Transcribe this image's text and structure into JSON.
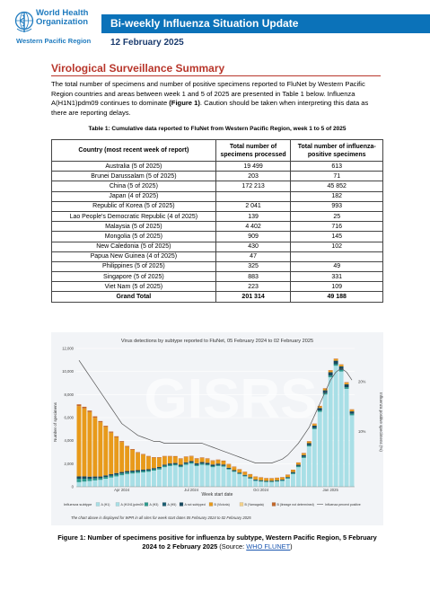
{
  "header": {
    "org_name_line1": "World Health",
    "org_name_line2": "Organization",
    "region": "Western Pacific Region",
    "title": "Bi-weekly Influenza Situation Update",
    "date": "12 February 2025",
    "brand_color": "#0b72b9"
  },
  "section": {
    "title": "Virological Surveillance Summary",
    "intro_part1": "The total number of specimens and number of positive specimens reported to FluNet by Western Pacific Region countries and areas between week 1 and 5 of 2025 are presented in Table 1 below. Influenza A(H1N1)pdm09 continues to dominate ",
    "intro_bold": "(Figure 1)",
    "intro_part2": ". Caution should be taken when interpreting this data as there are reporting delays."
  },
  "table": {
    "caption": "Table 1: Cumulative data reported to FluNet from Western Pacific Region, week 1 to 5 of 2025",
    "headers": [
      "Country (most recent week of report)",
      "Total number of specimens processed",
      "Total number of influenza-positive specimens"
    ],
    "rows": [
      [
        "Australia (5 of 2025)",
        "19 499",
        "613"
      ],
      [
        "Brunei Darussalam (5 of 2025)",
        "203",
        "71"
      ],
      [
        "China (5 of 2025)",
        "172 213",
        "45 852"
      ],
      [
        "Japan (4 of 2025)",
        "",
        "182"
      ],
      [
        "Republic of Korea (5 of 2025)",
        "2 041",
        "993"
      ],
      [
        "Lao People's Democratic Republic (4 of 2025)",
        "139",
        "25"
      ],
      [
        "Malaysia (5 of 2025)",
        "4 402",
        "716"
      ],
      [
        "Mongolia (5 of 2025)",
        "909",
        "145"
      ],
      [
        "New Caledonia (5 of 2025)",
        "430",
        "102"
      ],
      [
        "Papua New Guinea (4 of 2025)",
        "47",
        ""
      ],
      [
        "Philippines (5 of 2025)",
        "325",
        "49"
      ],
      [
        "Singapore (5 of 2025)",
        "883",
        "331"
      ],
      [
        "Viet Nam (5 of 2025)",
        "223",
        "109"
      ]
    ],
    "total": [
      "Grand Total",
      "201 314",
      "49 188"
    ]
  },
  "chart_data": {
    "type": "bar",
    "title": "Virus detections by subtype reported to FluNet, 05 February 2024 to 02 February 2025",
    "xlabel": "Week start date",
    "ylabel": "Number of specimens",
    "ylabel_right": "Influenza positive specimens (%)",
    "ylim": [
      0,
      12000
    ],
    "yticks": [
      "0",
      "2,000",
      "4,000",
      "6,000",
      "8,000",
      "10,000",
      "12,000"
    ],
    "right_ticks": [
      "10%",
      "20%"
    ],
    "xticks": [
      "Apr 2024",
      "Jul 2024",
      "Oct 2024",
      "Jan 2025"
    ],
    "watermark": "GISRS",
    "legend_title": "Influenza subtype",
    "series": [
      {
        "name": "A (H1)",
        "color": "#a8dfe6",
        "values": [
          0,
          0,
          0,
          0,
          0,
          0,
          0,
          0,
          0,
          0,
          0,
          0,
          0,
          0,
          0,
          0,
          0,
          0,
          0,
          0,
          0,
          0,
          0,
          0,
          0,
          0,
          0,
          0,
          0,
          0,
          0,
          0,
          0,
          0,
          0,
          0,
          0,
          0,
          0,
          0,
          0,
          0,
          0,
          0,
          0,
          0,
          0,
          0,
          0,
          0,
          0,
          0
        ]
      },
      {
        "name": "A (H1N1)pdm09",
        "color": "#a8dfe6",
        "values": [
          400,
          450,
          500,
          550,
          600,
          700,
          800,
          900,
          1000,
          1100,
          1150,
          1200,
          1250,
          1300,
          1400,
          1500,
          1700,
          1800,
          1850,
          1700,
          1900,
          2000,
          1800,
          1900,
          1850,
          1700,
          1800,
          1750,
          1500,
          1300,
          1100,
          900,
          700,
          500,
          450,
          400,
          400,
          450,
          500,
          700,
          1100,
          1700,
          2500,
          3500,
          5000,
          6500,
          8000,
          9500,
          10500,
          10000,
          8500,
          6200
        ]
      },
      {
        "name": "A (H3)",
        "color": "#2d9a8e",
        "values": [
          300,
          250,
          200,
          180,
          150,
          150,
          150,
          150,
          150,
          140,
          130,
          120,
          120,
          110,
          110,
          110,
          110,
          110,
          100,
          100,
          100,
          100,
          100,
          100,
          90,
          90,
          80,
          70,
          60,
          60,
          60,
          60,
          60,
          60,
          60,
          60,
          60,
          60,
          60,
          70,
          80,
          100,
          100,
          100,
          100,
          120,
          120,
          140,
          140,
          140,
          140,
          140
        ]
      },
      {
        "name": "A (H5)",
        "color": "#1b5e73",
        "values": [
          0,
          0,
          0,
          0,
          0,
          0,
          0,
          0,
          0,
          0,
          0,
          0,
          0,
          0,
          0,
          0,
          0,
          0,
          0,
          0,
          0,
          0,
          0,
          0,
          0,
          0,
          0,
          0,
          0,
          0,
          0,
          0,
          0,
          0,
          0,
          0,
          0,
          0,
          0,
          0,
          0,
          0,
          0,
          0,
          0,
          0,
          0,
          0,
          0,
          0,
          0,
          0
        ]
      },
      {
        "name": "A not subtyped",
        "color": "#16495f",
        "values": [
          200,
          200,
          180,
          160,
          140,
          140,
          140,
          140,
          130,
          120,
          120,
          120,
          110,
          110,
          110,
          110,
          110,
          110,
          110,
          110,
          120,
          130,
          140,
          140,
          140,
          140,
          130,
          110,
          90,
          80,
          70,
          70,
          70,
          70,
          60,
          60,
          60,
          60,
          60,
          70,
          100,
          120,
          150,
          180,
          200,
          220,
          250,
          300,
          300,
          300,
          250,
          200
        ]
      },
      {
        "name": "B (Victoria)",
        "color": "#e89a1a",
        "values": [
          6100,
          5900,
          5600,
          5100,
          4700,
          4200,
          3600,
          3100,
          2600,
          2100,
          1800,
          1500,
          1300,
          1100,
          900,
          800,
          700,
          600,
          550,
          500,
          450,
          400,
          380,
          350,
          330,
          310,
          300,
          290,
          280,
          260,
          250,
          240,
          230,
          220,
          210,
          200,
          190,
          180,
          180,
          170,
          160,
          150,
          140,
          140,
          140,
          140,
          140,
          140,
          140,
          140,
          140,
          140
        ]
      },
      {
        "name": "B (Yamagata)",
        "color": "#f5d28a",
        "values": [
          0,
          0,
          0,
          0,
          0,
          0,
          0,
          0,
          0,
          0,
          0,
          0,
          0,
          0,
          0,
          0,
          0,
          0,
          0,
          0,
          0,
          0,
          0,
          0,
          0,
          0,
          0,
          0,
          0,
          0,
          0,
          0,
          0,
          0,
          0,
          0,
          0,
          0,
          0,
          0,
          0,
          0,
          0,
          0,
          0,
          0,
          0,
          0,
          0,
          0,
          0,
          0
        ]
      },
      {
        "name": "B (lineage not determined)",
        "color": "#c4682a",
        "values": [
          150,
          140,
          130,
          120,
          110,
          100,
          100,
          90,
          80,
          80,
          70,
          60,
          60,
          50,
          50,
          50,
          50,
          50,
          50,
          50,
          50,
          50,
          50,
          50,
          50,
          50,
          50,
          50,
          50,
          50,
          40,
          40,
          40,
          40,
          40,
          40,
          40,
          40,
          40,
          40,
          40,
          40,
          40,
          40,
          40,
          40,
          40,
          40,
          40,
          40,
          40,
          40
        ]
      }
    ],
    "line_series": {
      "name": "Influenza percent positive",
      "color": "#555555",
      "values": [
        32,
        30,
        28,
        26,
        24,
        22,
        20,
        18,
        16,
        15,
        14,
        13,
        12.5,
        12,
        11.5,
        11.5,
        11,
        11,
        11,
        11,
        11,
        11,
        11,
        11,
        10.5,
        10,
        9.5,
        9,
        8.5,
        8,
        7.5,
        7,
        6.5,
        6,
        6,
        6,
        6,
        6.5,
        7,
        8,
        9.5,
        11,
        13,
        15,
        18,
        21,
        24,
        27,
        29,
        30,
        29,
        27
      ]
    },
    "legend_position": "bottom",
    "footnote": "The chart above is displayed for WPR in all sites for week start dates 05 February 2024 to 02 February 2025"
  },
  "figure": {
    "caption_bold": "Figure 1: Number of specimens positive for influenza by subtype, Western Pacific Region, 5 February 2024 to 2 February 2025",
    "caption_source_prefix": " (Source: ",
    "caption_link": "WHO FLUNET",
    "caption_suffix": ")"
  }
}
